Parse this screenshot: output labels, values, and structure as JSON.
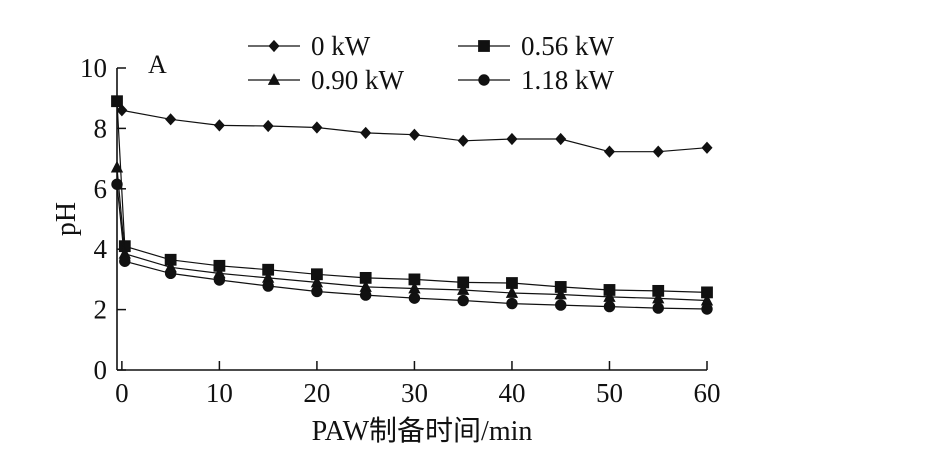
{
  "chart_data": {
    "type": "line",
    "title": "",
    "panel_label": "A",
    "xlabel": "PAW制备时间/min",
    "ylabel": "pH",
    "xlim": [
      -0.5,
      60
    ],
    "ylim": [
      0,
      10
    ],
    "xticks": [
      0,
      10,
      20,
      30,
      40,
      50,
      60
    ],
    "yticks": [
      0,
      2,
      4,
      6,
      8,
      10
    ],
    "grid": false,
    "legend_position": "top, two columns",
    "series": [
      {
        "name": "0 kW",
        "marker": "diamond",
        "color": "#111111",
        "x": [
          0,
          5,
          10,
          15,
          20,
          25,
          30,
          35,
          40,
          45,
          50,
          55,
          60
        ],
        "y": [
          8.6,
          8.3,
          8.1,
          8.08,
          8.03,
          7.85,
          7.79,
          7.59,
          7.65,
          7.65,
          7.23,
          7.23,
          7.36
        ]
      },
      {
        "name": "0.56 kW",
        "marker": "square",
        "color": "#111111",
        "x": [
          -0.5,
          0.3,
          5,
          10,
          15,
          20,
          25,
          30,
          35,
          40,
          45,
          50,
          55,
          60
        ],
        "y": [
          8.9,
          4.1,
          3.65,
          3.45,
          3.32,
          3.17,
          3.05,
          3.0,
          2.9,
          2.88,
          2.75,
          2.65,
          2.62,
          2.57
        ]
      },
      {
        "name": "0.90 kW",
        "marker": "triangle",
        "color": "#111111",
        "x": [
          -0.5,
          0.3,
          5,
          10,
          15,
          20,
          25,
          30,
          35,
          40,
          45,
          50,
          55,
          60
        ],
        "y": [
          6.7,
          3.85,
          3.4,
          3.2,
          3.05,
          2.9,
          2.75,
          2.7,
          2.65,
          2.55,
          2.5,
          2.42,
          2.37,
          2.3
        ]
      },
      {
        "name": "1.18 kW",
        "marker": "circle",
        "color": "#111111",
        "x": [
          -0.5,
          0.3,
          5,
          10,
          15,
          20,
          25,
          30,
          35,
          40,
          45,
          50,
          55,
          60
        ],
        "y": [
          6.15,
          3.6,
          3.2,
          2.98,
          2.78,
          2.6,
          2.48,
          2.38,
          2.3,
          2.2,
          2.15,
          2.1,
          2.05,
          2.02
        ]
      }
    ]
  }
}
